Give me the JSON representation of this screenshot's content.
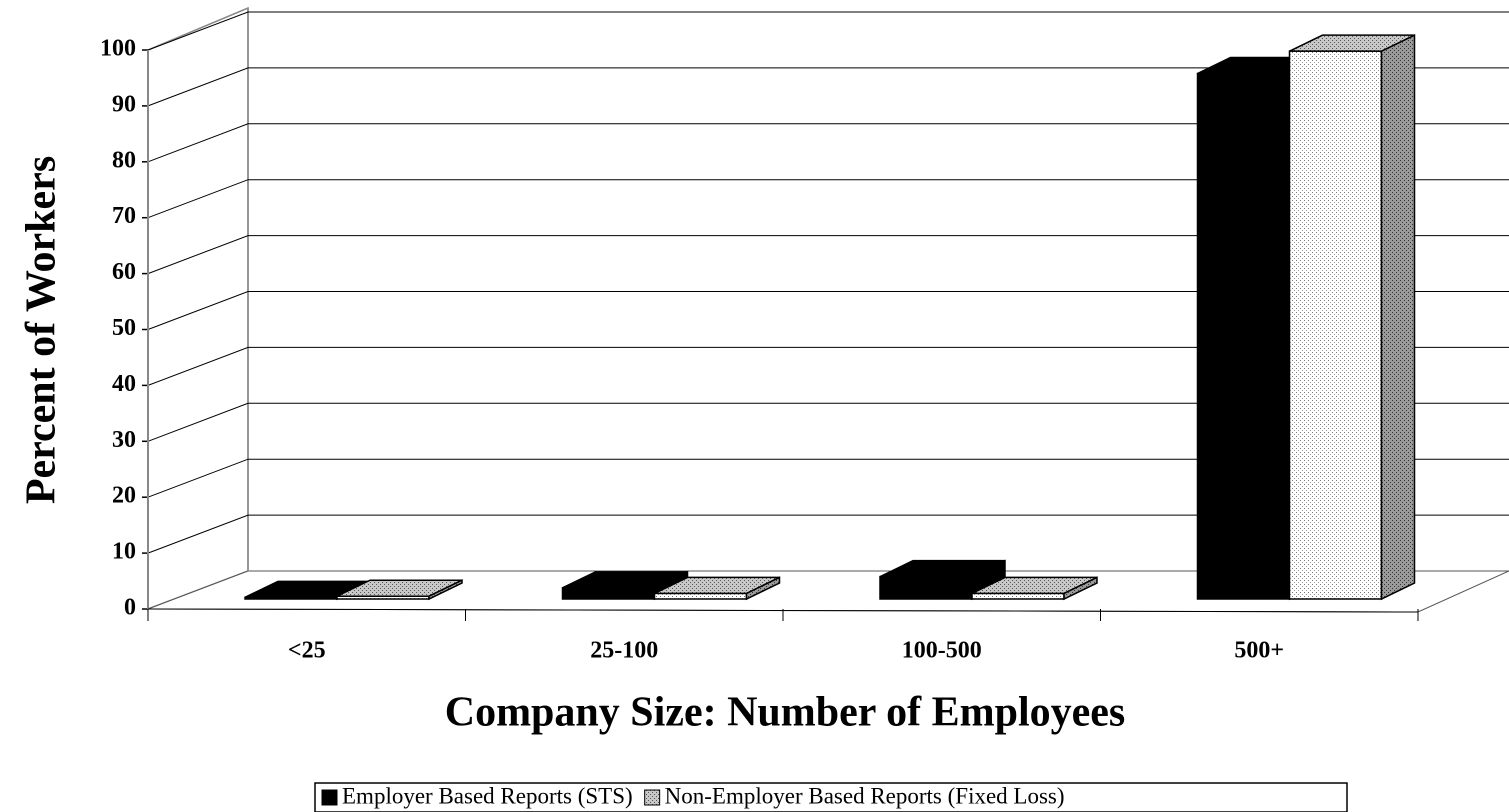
{
  "chart_data": {
    "type": "bar",
    "x_label": "Company Size: Number of Employees",
    "y_label": "Percent of Workers",
    "categories": [
      "<25",
      "25-100",
      "100-500",
      "500+"
    ],
    "series": [
      {
        "name": "Employer Based Reports (STS)",
        "color": "#000000",
        "values": [
          0.3,
          2,
          4,
          94
        ]
      },
      {
        "name": "Non-Employer Based Reports (Fixed Loss)",
        "color": "#a0a0a0",
        "values": [
          0.5,
          1,
          1,
          98
        ]
      }
    ],
    "ylim": [
      0,
      100
    ],
    "yticks": [
      0,
      10,
      20,
      30,
      40,
      50,
      60,
      70,
      80,
      90,
      100
    ],
    "grid": true,
    "legend": "bottom"
  }
}
